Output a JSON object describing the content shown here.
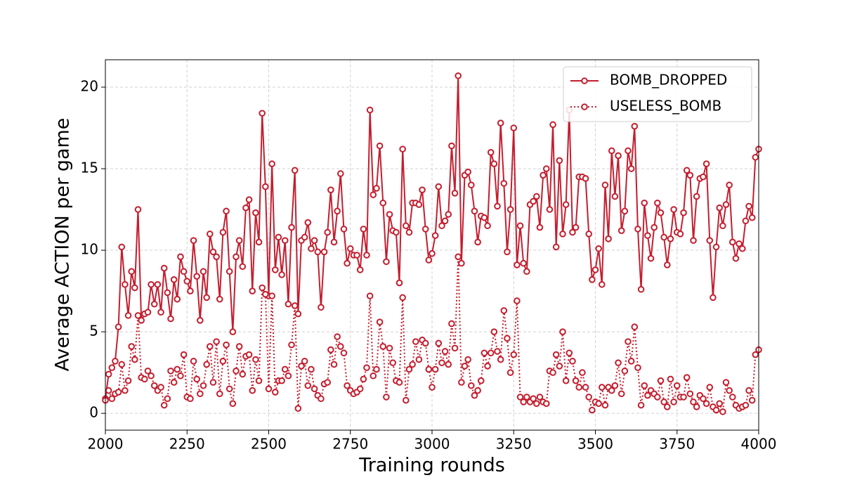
{
  "chart_data": {
    "type": "line",
    "xlabel": "Training rounds",
    "ylabel": "Average ACTION per game",
    "xlim": [
      2000,
      4000
    ],
    "xticks": [
      2000,
      2250,
      2500,
      2750,
      3000,
      3250,
      3500,
      3750,
      4000
    ],
    "ylim": [
      -1.03,
      21.68
    ],
    "yticks": [
      0,
      5,
      10,
      15,
      20
    ],
    "grid": true,
    "legend": "upper right",
    "x": [
      2000,
      2010,
      2020,
      2030,
      2040,
      2050,
      2060,
      2070,
      2080,
      2090,
      2100,
      2110,
      2120,
      2130,
      2140,
      2150,
      2160,
      2170,
      2180,
      2190,
      2200,
      2210,
      2220,
      2230,
      2240,
      2250,
      2260,
      2270,
      2280,
      2290,
      2300,
      2310,
      2320,
      2330,
      2340,
      2350,
      2360,
      2370,
      2380,
      2390,
      2400,
      2410,
      2420,
      2430,
      2440,
      2450,
      2460,
      2470,
      2480,
      2490,
      2500,
      2510,
      2520,
      2530,
      2540,
      2550,
      2560,
      2570,
      2580,
      2590,
      2600,
      2610,
      2620,
      2630,
      2640,
      2650,
      2660,
      2670,
      2680,
      2690,
      2700,
      2710,
      2720,
      2730,
      2740,
      2750,
      2760,
      2770,
      2780,
      2790,
      2800,
      2810,
      2820,
      2830,
      2840,
      2850,
      2860,
      2870,
      2880,
      2890,
      2900,
      2910,
      2920,
      2930,
      2940,
      2950,
      2960,
      2970,
      2980,
      2990,
      3000,
      3010,
      3020,
      3030,
      3040,
      3050,
      3060,
      3070,
      3080,
      3090,
      3100,
      3110,
      3120,
      3130,
      3140,
      3150,
      3160,
      3170,
      3180,
      3190,
      3200,
      3210,
      3220,
      3230,
      3240,
      3250,
      3260,
      3270,
      3280,
      3290,
      3300,
      3310,
      3320,
      3330,
      3340,
      3350,
      3360,
      3370,
      3380,
      3390,
      3400,
      3410,
      3420,
      3430,
      3440,
      3450,
      3460,
      3470,
      3480,
      3490,
      3500,
      3510,
      3520,
      3530,
      3540,
      3550,
      3560,
      3570,
      3580,
      3590,
      3600,
      3610,
      3620,
      3630,
      3640,
      3650,
      3660,
      3670,
      3680,
      3690,
      3700,
      3710,
      3720,
      3730,
      3740,
      3750,
      3760,
      3770,
      3780,
      3790,
      3800,
      3810,
      3820,
      3830,
      3840,
      3850,
      3860,
      3870,
      3880,
      3890,
      3900,
      3910,
      3920,
      3930,
      3940,
      3950,
      3960,
      3970,
      3980,
      3990,
      4000
    ],
    "series": [
      {
        "name": "BOMB_DROPPED",
        "color": "#c41e2e",
        "linestyle": "solid",
        "values": [
          0.9,
          2.4,
          2.8,
          3.2,
          5.3,
          10.2,
          7.9,
          6.0,
          8.7,
          7.7,
          12.5,
          5.7,
          6.1,
          6.2,
          7.9,
          6.7,
          7.9,
          6.2,
          8.9,
          7.4,
          5.8,
          8.2,
          7.0,
          9.6,
          8.7,
          8.1,
          7.5,
          10.6,
          8.4,
          5.7,
          8.7,
          7.1,
          11.0,
          9.9,
          9.6,
          7.0,
          11.1,
          12.4,
          8.7,
          5.0,
          9.6,
          10.6,
          9.0,
          12.6,
          13.1,
          7.5,
          12.3,
          10.5,
          18.4,
          13.9,
          7.2,
          15.3,
          8.8,
          10.8,
          8.5,
          10.6,
          6.7,
          11.4,
          14.9,
          6.1,
          10.6,
          10.8,
          11.7,
          10.1,
          10.6,
          9.9,
          6.5,
          9.9,
          11.1,
          13.7,
          10.5,
          12.4,
          14.7,
          11.3,
          9.2,
          10.1,
          9.7,
          9.7,
          8.8,
          11.3,
          9.7,
          18.6,
          13.4,
          13.8,
          16.4,
          12.9,
          9.3,
          12.2,
          11.2,
          11.1,
          8.0,
          16.2,
          11.5,
          11.1,
          12.9,
          12.9,
          12.8,
          13.7,
          11.3,
          9.4,
          9.8,
          10.9,
          13.9,
          11.5,
          11.8,
          12.2,
          16.4,
          13.5,
          20.7,
          9.2,
          14.6,
          14.8,
          14.0,
          12.4,
          10.5,
          12.1,
          12.0,
          11.5,
          16.0,
          15.3,
          12.7,
          17.8,
          14.1,
          9.9,
          12.5,
          17.5,
          9.1,
          11.5,
          9.2,
          8.7,
          12.8,
          13.0,
          13.3,
          11.4,
          14.6,
          15.0,
          12.5,
          17.7,
          10.2,
          15.5,
          11.0,
          12.8,
          18.6,
          11.1,
          11.4,
          14.5,
          14.5,
          14.4,
          11.0,
          8.2,
          8.8,
          10.1,
          7.9,
          14.0,
          10.7,
          16.1,
          13.3,
          15.8,
          11.2,
          12.4,
          16.1,
          15.0,
          17.6,
          11.3,
          7.6,
          12.9,
          10.9,
          9.5,
          11.4,
          12.9,
          12.3,
          10.8,
          9.1,
          10.7,
          12.5,
          11.1,
          11.0,
          12.3,
          14.9,
          14.6,
          10.6,
          13.3,
          14.4,
          14.5,
          15.3,
          10.6,
          7.1,
          10.2,
          12.6,
          11.5,
          12.8,
          14.0,
          10.5,
          9.5,
          10.4,
          10.1,
          11.8,
          12.7,
          12.0,
          15.7,
          16.2
        ]
      },
      {
        "name": "USELESS_BOMB",
        "color": "#c41e2e",
        "linestyle": "dotted",
        "values": [
          0.8,
          1.4,
          0.9,
          1.2,
          1.3,
          3.0,
          1.4,
          2.0,
          4.1,
          3.3,
          6.0,
          2.2,
          2.1,
          2.6,
          2.3,
          1.7,
          1.4,
          1.6,
          0.5,
          0.9,
          2.6,
          1.9,
          2.7,
          2.3,
          3.6,
          1.0,
          0.9,
          3.2,
          2.1,
          1.2,
          1.7,
          3.0,
          4.1,
          1.9,
          4.4,
          1.2,
          3.2,
          4.2,
          1.5,
          0.6,
          2.6,
          4.1,
          2.4,
          3.5,
          3.6,
          1.4,
          3.3,
          2.0,
          7.7,
          7.3,
          1.5,
          7.2,
          1.3,
          2.0,
          2.0,
          2.7,
          2.3,
          4.2,
          6.6,
          0.3,
          2.9,
          3.2,
          1.7,
          2.7,
          1.5,
          1.1,
          0.9,
          1.8,
          1.9,
          3.9,
          3.0,
          4.7,
          4.1,
          3.7,
          1.7,
          1.4,
          1.2,
          1.3,
          1.5,
          2.1,
          2.8,
          7.2,
          2.3,
          2.7,
          5.6,
          4.1,
          1.0,
          4.0,
          3.1,
          2.0,
          1.9,
          7.1,
          0.8,
          2.7,
          3.0,
          4.4,
          3.3,
          4.5,
          4.3,
          2.7,
          1.6,
          2.7,
          4.3,
          3.1,
          3.8,
          3.0,
          5.5,
          4.0,
          9.6,
          1.9,
          2.9,
          3.3,
          1.7,
          1.1,
          1.4,
          2.0,
          3.7,
          2.9,
          3.7,
          5.0,
          3.8,
          3.3,
          6.3,
          4.6,
          2.5,
          3.6,
          6.9,
          1.0,
          0.7,
          1.0,
          0.7,
          0.9,
          0.6,
          1.0,
          0.7,
          0.6,
          2.6,
          2.5,
          3.6,
          2.9,
          5.0,
          2.0,
          3.7,
          3.2,
          2.0,
          1.6,
          2.5,
          1.6,
          1.0,
          0.2,
          0.7,
          0.6,
          1.6,
          0.5,
          1.6,
          1.4,
          1.7,
          3.1,
          1.2,
          2.6,
          4.4,
          3.2,
          5.3,
          2.8,
          0.5,
          1.7,
          1.1,
          1.4,
          1.2,
          1.0,
          2.0,
          0.7,
          0.4,
          2.1,
          0.7,
          1.7,
          1.0,
          1.0,
          2.2,
          1.2,
          0.7,
          0.4,
          1.1,
          0.9,
          0.6,
          1.6,
          0.4,
          0.2,
          0.6,
          0.1,
          1.9,
          1.4,
          1.0,
          0.5,
          0.3,
          0.4,
          0.5,
          1.4,
          0.8,
          3.6,
          3.9
        ]
      }
    ]
  }
}
